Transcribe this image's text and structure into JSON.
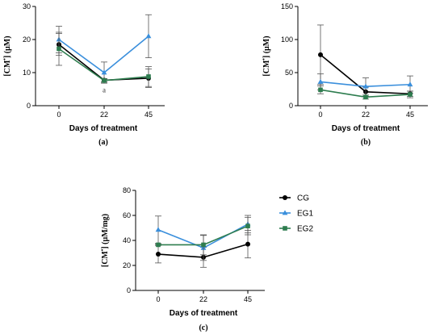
{
  "colors": {
    "CG": "#000000",
    "EG1": "#3a8fdc",
    "EG2": "#2e7d4f"
  },
  "legend": [
    {
      "key": "CG",
      "label": "CG",
      "marker": "circle"
    },
    {
      "key": "EG1",
      "label": "EG1",
      "marker": "triangle"
    },
    {
      "key": "EG2",
      "label": "EG2",
      "marker": "square"
    }
  ],
  "chart_data": [
    {
      "type": "line",
      "panel_label": "(a)",
      "ylabel_main": "[CM",
      "ylabel_sup": "•",
      "ylabel_rest": "] (µM)",
      "xlabel": "Days of treatment",
      "x": [
        "0",
        "22",
        "45"
      ],
      "ylim": [
        0,
        30
      ],
      "yticks": [
        0,
        10,
        20,
        30
      ],
      "annotation": {
        "text": "a",
        "x": "22",
        "y": 4
      },
      "series": [
        {
          "name": "CG",
          "key": "CG",
          "values": [
            18.5,
            7.7,
            8.3
          ],
          "err": [
            3.3,
            0.5,
            2.8
          ]
        },
        {
          "name": "EG1",
          "key": "EG1",
          "values": [
            20.0,
            10.0,
            21.0
          ],
          "err": [
            4.0,
            3.2,
            6.5
          ]
        },
        {
          "name": "EG2",
          "key": "EG2",
          "values": [
            17.2,
            7.6,
            8.8
          ],
          "err": [
            5.0,
            0.5,
            3.0
          ]
        }
      ]
    },
    {
      "type": "line",
      "panel_label": "(b)",
      "ylabel_main": "[CM",
      "ylabel_sup": "•",
      "ylabel_rest": "] (µM)",
      "xlabel": "Days of treatment",
      "x": [
        "0",
        "22",
        "45"
      ],
      "ylim": [
        0,
        150
      ],
      "yticks": [
        0,
        50,
        100,
        150
      ],
      "series": [
        {
          "name": "CG",
          "key": "CG",
          "values": [
            77,
            21,
            18
          ],
          "err": [
            45,
            7,
            4
          ]
        },
        {
          "name": "EG1",
          "key": "EG1",
          "values": [
            36,
            29,
            32
          ],
          "err": [
            12,
            13,
            13
          ]
        },
        {
          "name": "EG2",
          "key": "EG2",
          "values": [
            24,
            13,
            17
          ],
          "err": [
            6,
            3,
            5
          ]
        }
      ]
    },
    {
      "type": "line",
      "panel_label": "(c)",
      "ylabel_main": "[CM",
      "ylabel_sup": "•",
      "ylabel_rest": "] (µM/mg)",
      "xlabel": "Days of treatment",
      "x": [
        "0",
        "22",
        "45"
      ],
      "ylim": [
        0,
        80
      ],
      "yticks": [
        0,
        20,
        40,
        60,
        80
      ],
      "series": [
        {
          "name": "CG",
          "key": "CG",
          "values": [
            29,
            26.5,
            37
          ],
          "err": [
            7,
            8,
            11
          ]
        },
        {
          "name": "EG1",
          "key": "EG1",
          "values": [
            48.5,
            34,
            53
          ],
          "err": [
            11,
            10,
            7
          ]
        },
        {
          "name": "EG2",
          "key": "EG2",
          "values": [
            36.5,
            36.5,
            51.5
          ],
          "err": [
            0.5,
            8,
            7
          ]
        }
      ]
    }
  ]
}
